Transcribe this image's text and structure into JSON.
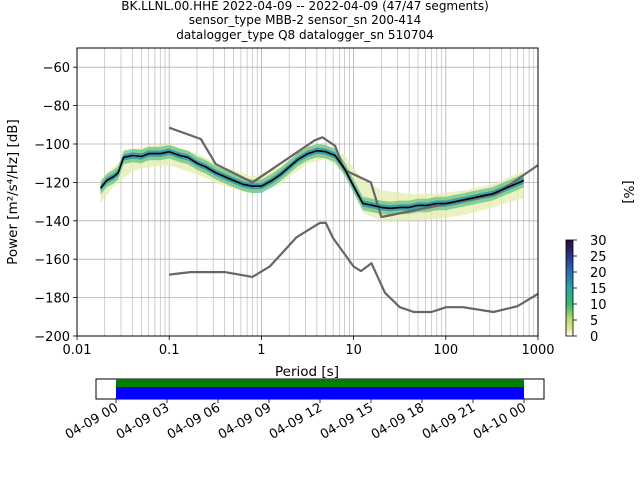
{
  "chart_data": {
    "type": "heatmap",
    "title_lines": [
      "BK.LLNL.00.HHE   2022-04-09 -- 2022-04-09  (47/47 segments)",
      "sensor_type MBB-2 sensor_sn 200-414",
      "datalogger_type Q8 datalogger_sn 510704"
    ],
    "xlabel": "Period [s]",
    "ylabel": "Power [m²/s⁴/Hz] [dB]",
    "xscale": "log",
    "xlim": [
      0.01,
      1000
    ],
    "ylim": [
      -200,
      -50
    ],
    "x_tick_labels": [
      "0.01",
      "0.1",
      "1",
      "10",
      "100",
      "1000"
    ],
    "y_tick_labels": [
      "−60",
      "−80",
      "−100",
      "−120",
      "−140",
      "−160",
      "−180",
      "−200"
    ],
    "y_ticks": [
      -60,
      -80,
      -100,
      -120,
      -140,
      -160,
      -180,
      -200
    ],
    "grid": true,
    "colorbar": {
      "label": "[%]",
      "range": [
        0,
        30
      ],
      "tick_labels": [
        "0",
        "5",
        "10",
        "15",
        "20",
        "25",
        "30"
      ],
      "colormap": "pqlx"
    },
    "series": [
      {
        "role": "new high noise model",
        "color": "#666666",
        "x": [
          0.1,
          0.22,
          0.32,
          0.8,
          3.8,
          4.6,
          6.3,
          7.9,
          15.4,
          20,
          354.8,
          1000
        ],
        "y": [
          -91.5,
          -97.4,
          -110.5,
          -120,
          -98,
          -96.5,
          -101,
          -113.5,
          -120,
          -138,
          -126,
          -111
        ]
      },
      {
        "role": "new low noise model",
        "color": "#666666",
        "x": [
          0.1,
          0.17,
          0.4,
          0.8,
          1.24,
          2.4,
          4.3,
          5,
          6,
          10,
          12,
          15.6,
          21.9,
          31.6,
          45,
          70,
          101,
          154,
          328,
          600,
          1000
        ],
        "y": [
          -168,
          -166.7,
          -166.7,
          -169.2,
          -163.7,
          -148.6,
          -141.1,
          -141.1,
          -149,
          -163.8,
          -166.2,
          -162.1,
          -177.5,
          -185,
          -187.5,
          -187.5,
          -185,
          -185,
          -187.5,
          -184.5,
          -178
        ]
      },
      {
        "role": "mode",
        "color": "#000000",
        "x": [
          0.018,
          0.021,
          0.025,
          0.028,
          0.032,
          0.04,
          0.05,
          0.06,
          0.08,
          0.1,
          0.13,
          0.16,
          0.2,
          0.25,
          0.32,
          0.4,
          0.5,
          0.63,
          0.8,
          1.0,
          1.3,
          1.6,
          2.0,
          2.5,
          3.2,
          4.0,
          5.0,
          6.3,
          8.0,
          10,
          12.6,
          16,
          20,
          25,
          32,
          40,
          50,
          63,
          80,
          100,
          126,
          160,
          200,
          250,
          320,
          400,
          500,
          630,
          700
        ],
        "y": [
          -123,
          -119,
          -117,
          -115,
          -107,
          -106,
          -106.5,
          -105,
          -105,
          -104,
          -106,
          -107,
          -110,
          -112,
          -115,
          -117,
          -119,
          -121,
          -122,
          -122,
          -119,
          -116,
          -112,
          -108,
          -105,
          -103.5,
          -104,
          -106,
          -113,
          -122,
          -131,
          -132,
          -133,
          -133.5,
          -133,
          -133,
          -132,
          -132,
          -131,
          -131,
          -130,
          -129,
          -128,
          -127,
          -126,
          -124,
          -122,
          -120,
          -119
        ]
      },
      {
        "role": "ppsd spread (upper envelope)",
        "x": [
          0.018,
          0.025,
          0.04,
          0.06,
          0.1,
          0.2,
          0.4,
          0.8,
          1.6,
          3.2,
          5,
          8,
          12.6,
          20,
          40,
          80,
          160,
          320,
          700
        ],
        "y": [
          -119,
          -112,
          -103,
          -101,
          -100,
          -105,
          -112,
          -117,
          -112,
          -101,
          -101,
          -106,
          -119,
          -124,
          -126,
          -126,
          -124,
          -121,
          -114
        ]
      },
      {
        "role": "ppsd spread (lower envelope)",
        "x": [
          0.018,
          0.025,
          0.04,
          0.06,
          0.1,
          0.2,
          0.4,
          0.8,
          1.6,
          3.2,
          5,
          8,
          12.6,
          20,
          40,
          80,
          160,
          320,
          700
        ],
        "y": [
          -131,
          -122,
          -114,
          -112,
          -111,
          -116,
          -122,
          -126,
          -121,
          -110,
          -108,
          -114,
          -136,
          -140,
          -140,
          -139,
          -137,
          -133,
          -128
        ]
      }
    ]
  },
  "time_coverage": {
    "tick_labels": [
      "04-09 00",
      "04-09 03",
      "04-09 06",
      "04-09 09",
      "04-09 12",
      "04-09 15",
      "04-09 18",
      "04-09 21",
      "04-10 00"
    ],
    "coverage_fraction": 1.0,
    "colors": {
      "data": "#0000ff",
      "used": "#008000"
    }
  }
}
